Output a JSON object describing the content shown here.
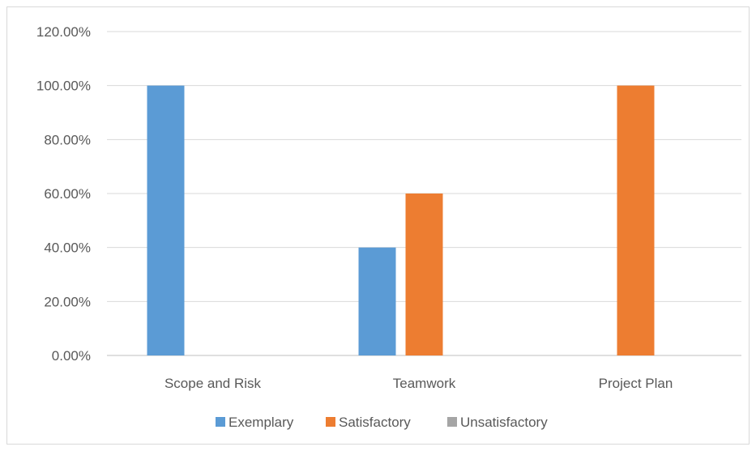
{
  "chart_data": {
    "type": "bar",
    "categories": [
      "Scope and Risk",
      "Teamwork",
      "Project Plan"
    ],
    "series": [
      {
        "name": "Exemplary",
        "values": [
          100,
          40,
          0
        ],
        "color": "#5b9bd5"
      },
      {
        "name": "Satisfactory",
        "values": [
          0,
          60,
          100
        ],
        "color": "#ed7d31"
      },
      {
        "name": "Unsatisfactory",
        "values": [
          0,
          0,
          0
        ],
        "color": "#a5a5a5"
      }
    ],
    "y_ticks": [
      "0.00%",
      "20.00%",
      "40.00%",
      "60.00%",
      "80.00%",
      "100.00%",
      "120.00%"
    ],
    "ylim": [
      0,
      120
    ],
    "y_unit": "percent",
    "grid": true,
    "legend_position": "bottom",
    "title": "",
    "xlabel": "",
    "ylabel": ""
  }
}
